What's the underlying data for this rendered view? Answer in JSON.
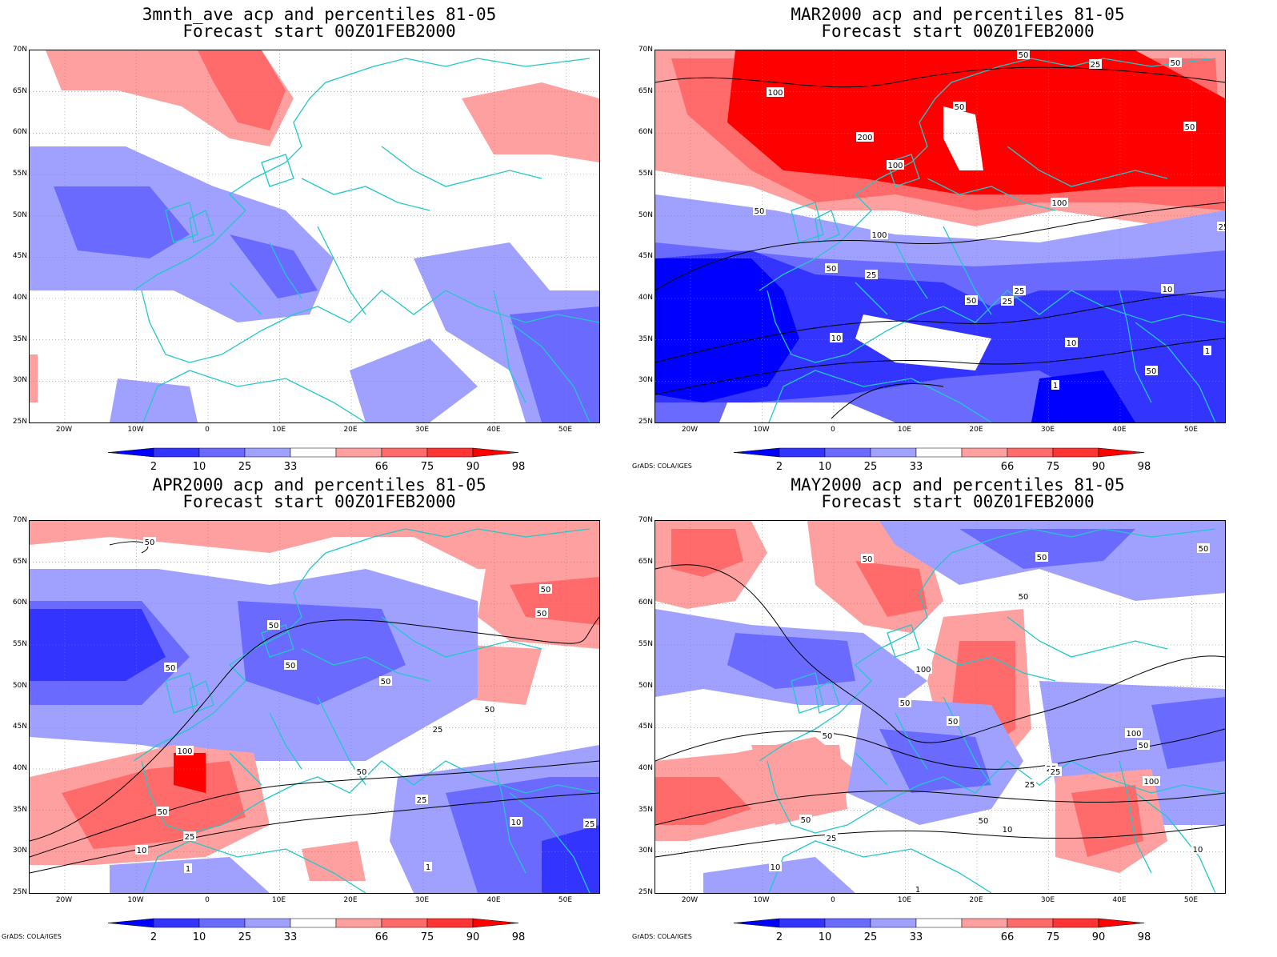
{
  "panels": [
    {
      "title1": "3mnth_ave acp and percentiles 81-05",
      "title2": "Forecast start 00Z01FEB2000",
      "contours": [],
      "credit": ""
    },
    {
      "title1": "MAR2000 acp and percentiles 81-05",
      "title2": "Forecast start 00Z01FEB2000",
      "contours": [
        "50",
        "100",
        "50",
        "200",
        "100",
        "50",
        "100",
        "50",
        "100",
        "50",
        "25",
        "25",
        "50",
        "25",
        "50",
        "10",
        "25",
        "10",
        "1",
        "1",
        "50",
        "25",
        "10"
      ],
      "credit": "GrADS: COLA/IGES"
    },
    {
      "title1": "APR2000 acp and percentiles 81-05",
      "title2": "Forecast start 00Z01FEB2000",
      "contours": [
        "50",
        "50",
        "50",
        "50",
        "50",
        "50",
        "50",
        "50",
        "25",
        "100",
        "50",
        "25",
        "50",
        "10",
        "25",
        "10",
        "1",
        "1",
        "25"
      ],
      "credit": "GrADS: COLA/IGES"
    },
    {
      "title1": "MAY2000 acp and percentiles 81-05",
      "title2": "Forecast start 00Z01FEB2000",
      "contours": [
        "50",
        "50",
        "50",
        "50",
        "50",
        "50",
        "100",
        "50",
        "100",
        "50",
        "25",
        "50",
        "100",
        "25",
        "25",
        "50",
        "25",
        "10",
        "10",
        "10",
        "1"
      ],
      "credit": "GrADS: COLA/IGES"
    }
  ],
  "lat_labels": [
    "70N",
    "65N",
    "60N",
    "55N",
    "50N",
    "45N",
    "40N",
    "35N",
    "30N",
    "25N"
  ],
  "lon_labels": [
    "20W",
    "10W",
    "0",
    "10E",
    "20E",
    "30E",
    "40E",
    "50E"
  ],
  "colorbar": {
    "labels": [
      "2",
      "10",
      "25",
      "33",
      "66",
      "75",
      "90",
      "98"
    ],
    "colors": [
      "#0000ff",
      "#3434ff",
      "#6a6aff",
      "#a0a0ff",
      "#ffffff",
      "#ffa0a0",
      "#ff6a6a",
      "#ff3434",
      "#ff0000"
    ]
  },
  "legend_colors": {
    "c_lt2": "#0000ff",
    "c_2_10": "#3434ff",
    "c_10_25": "#6a6aff",
    "c_25_33": "#a0a0ff",
    "c_neutral": "#ffffff",
    "c_66_75": "#ffa0a0",
    "c_75_90": "#ff6a6a",
    "c_90_98": "#ff3434",
    "c_gt98": "#ff0000",
    "coast": "#22c8c8",
    "contour": "#000000"
  }
}
